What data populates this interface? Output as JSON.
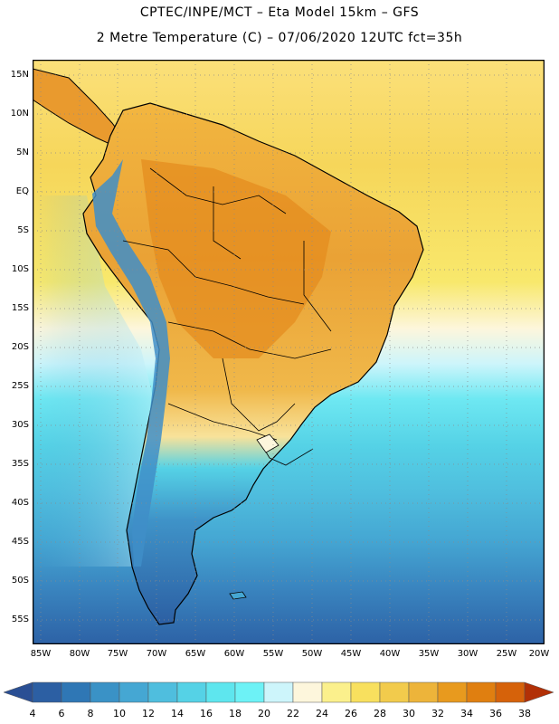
{
  "header": {
    "title_line1": "CPTEC/INPE/MCT –  Eta Model 15km – GFS",
    "title_line2": "2 Metre Temperature (C) – 07/06/2020 12UTC fct=35h"
  },
  "map": {
    "lat_labels": [
      "15N",
      "10N",
      "5N",
      "EQ",
      "5S",
      "10S",
      "15S",
      "20S",
      "25S",
      "30S",
      "35S",
      "40S",
      "45S",
      "50S",
      "55S"
    ],
    "lon_labels": [
      "85W",
      "80W",
      "75W",
      "70W",
      "65W",
      "60W",
      "55W",
      "50W",
      "45W",
      "40W",
      "35W",
      "30W",
      "25W",
      "20W"
    ],
    "lat_range": [
      17,
      -58
    ],
    "lon_range": [
      -86,
      -20
    ]
  },
  "colorbar": {
    "labels": [
      "4",
      "6",
      "8",
      "10",
      "12",
      "14",
      "16",
      "18",
      "20",
      "22",
      "24",
      "26",
      "28",
      "30",
      "32",
      "34",
      "36",
      "38"
    ],
    "colors": [
      "#2c5fa3",
      "#2f77b5",
      "#3a92c6",
      "#45a7d3",
      "#4fbede",
      "#55d2e6",
      "#5ee6ee",
      "#6df2f6",
      "#cdf5fb",
      "#fdf6dc",
      "#fbf08c",
      "#f8e05e",
      "#f2cb4c",
      "#edb43a",
      "#e89a1e",
      "#e07f10",
      "#d6620a",
      "#c84a07",
      "#b23006"
    ],
    "end_low_color": "#2a4f94",
    "end_high_color": "#b23006"
  }
}
